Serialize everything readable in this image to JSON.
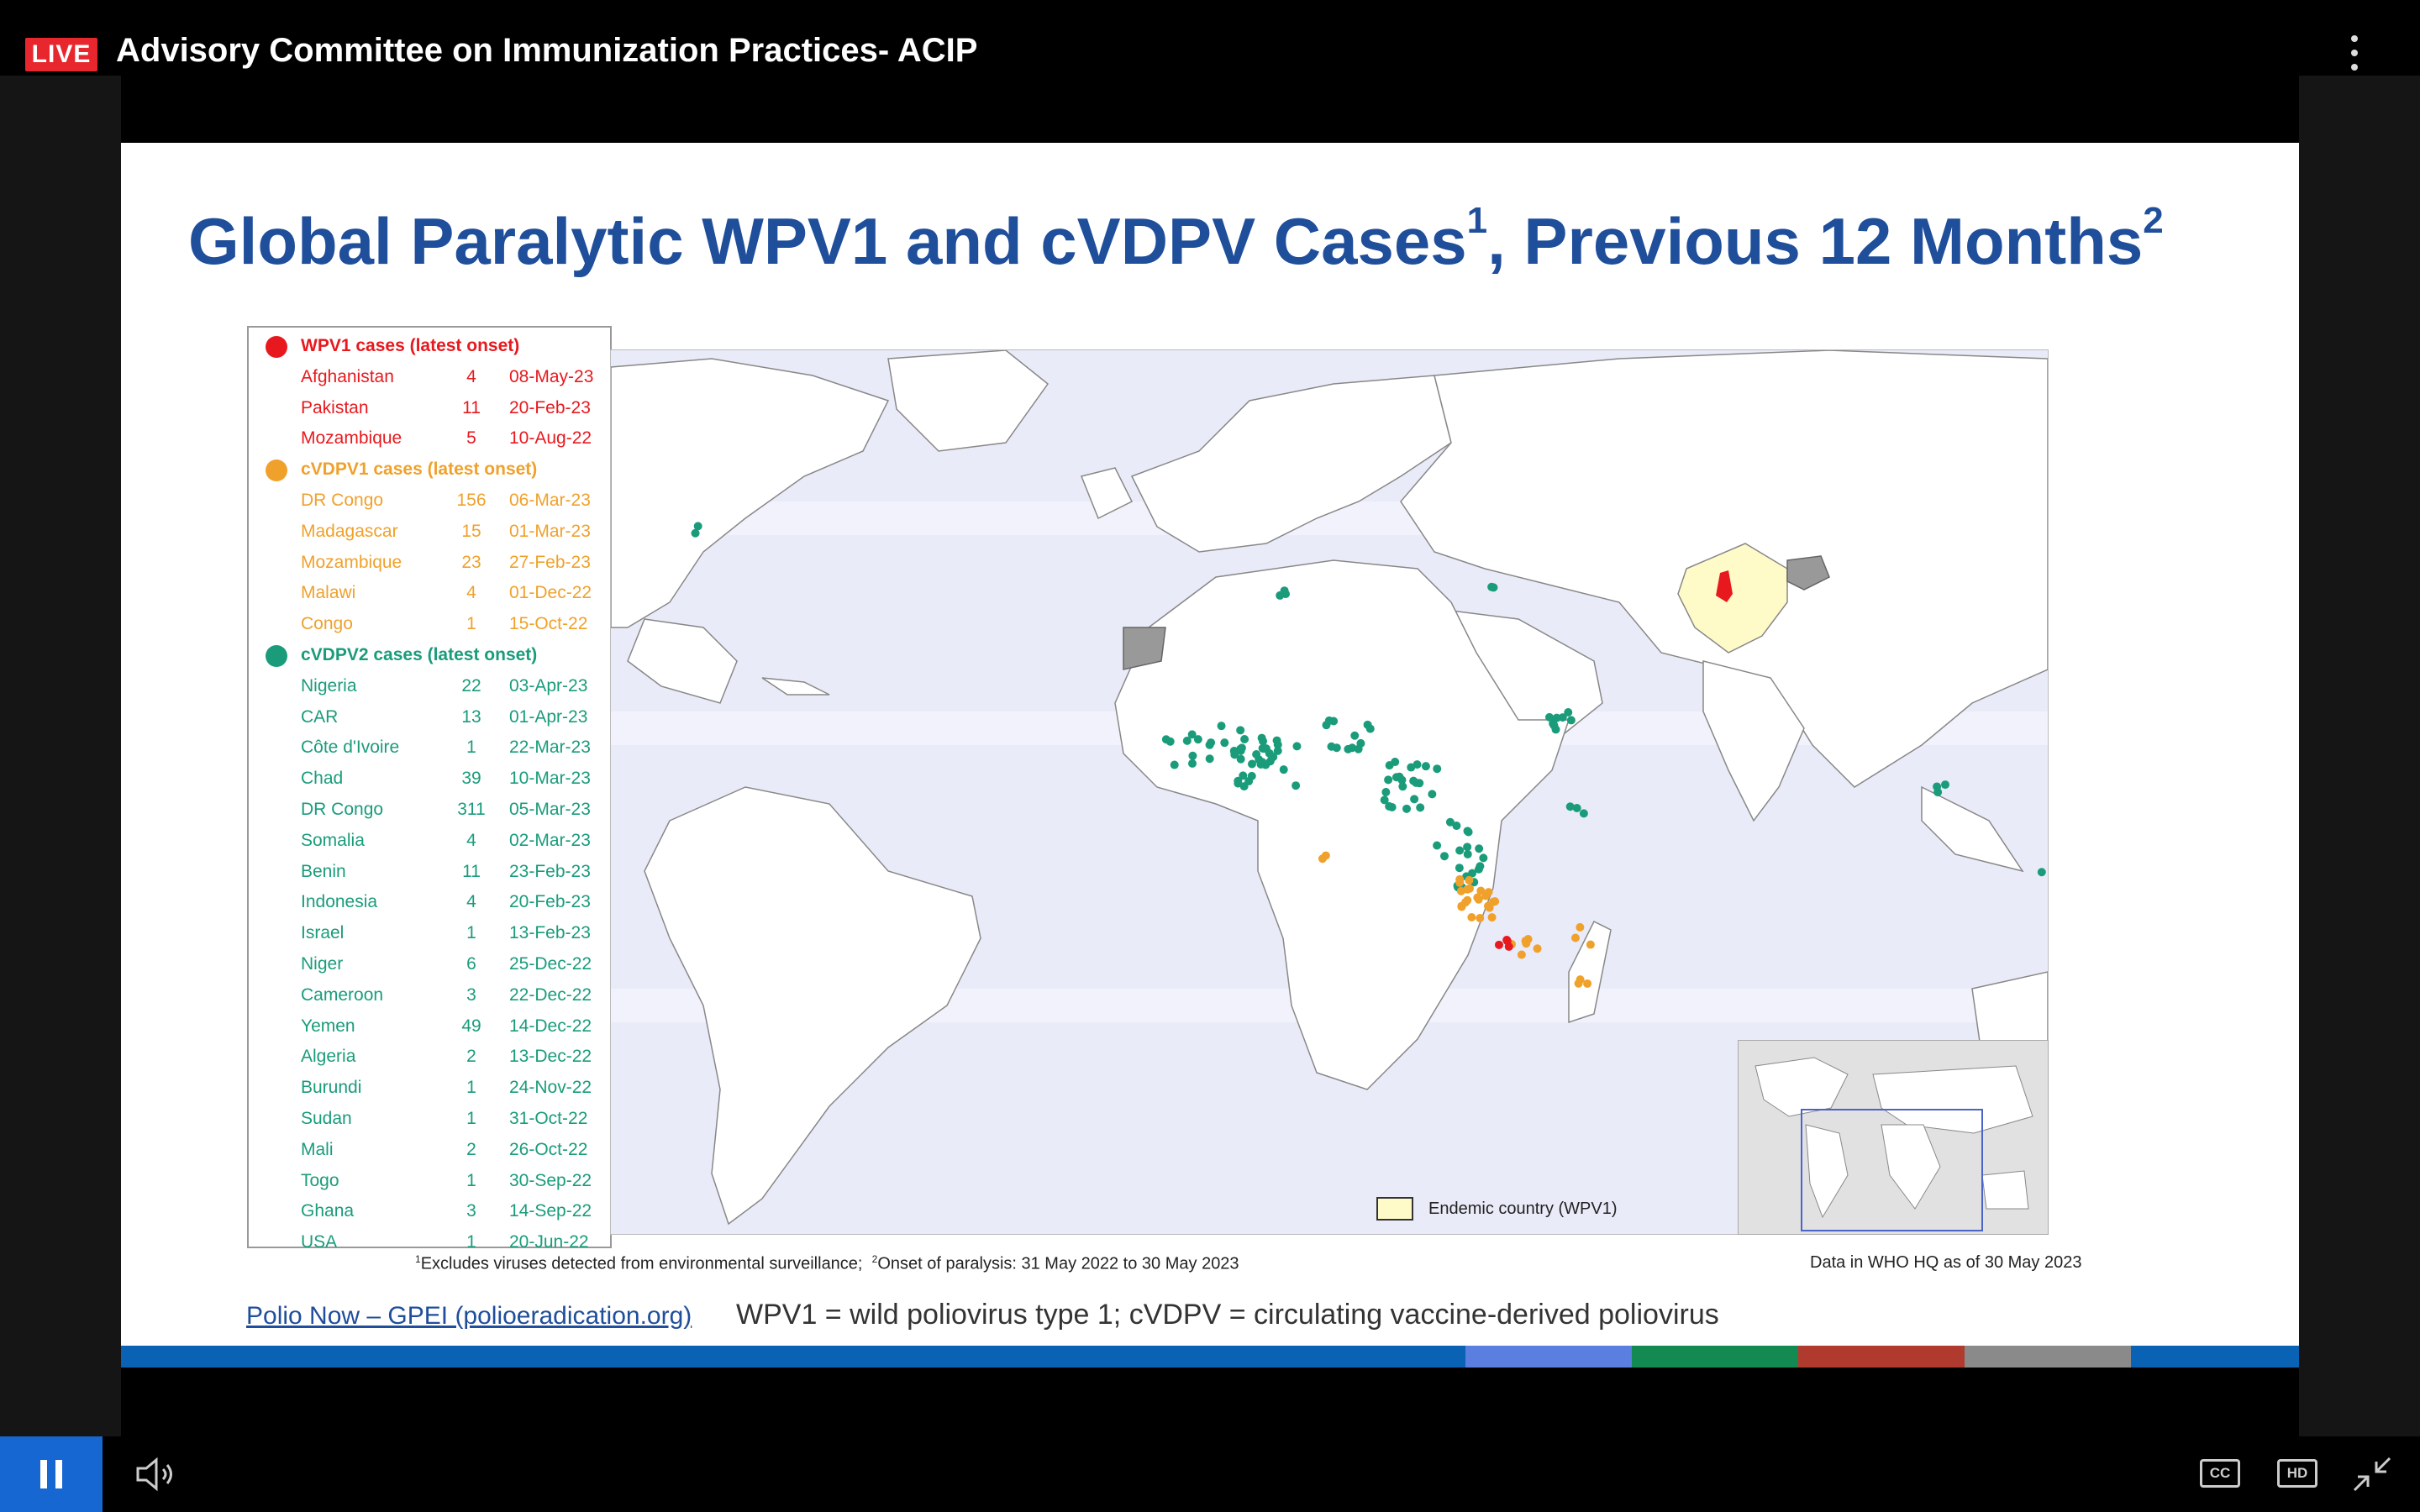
{
  "player": {
    "live_badge": "LIVE",
    "title": "Advisory Committee on Immunization Practices- ACIP"
  },
  "slide": {
    "title_main": "Global Paralytic WPV1 and cVDPV Cases",
    "title_sup1": "1",
    "title_sep": ", Previous 12 Months",
    "title_sup2": "2",
    "legend": {
      "wpv1": {
        "heading": "WPV1 cases (latest onset)",
        "color": "#e8191e",
        "rows": [
          {
            "country": "Afghanistan",
            "count": "4",
            "date": "08-May-23"
          },
          {
            "country": "Pakistan",
            "count": "11",
            "date": "20-Feb-23"
          },
          {
            "country": "Mozambique",
            "count": "5",
            "date": "10-Aug-22"
          }
        ]
      },
      "cvdpv1": {
        "heading": "cVDPV1 cases (latest onset)",
        "color": "#f0a12c",
        "rows": [
          {
            "country": "DR Congo",
            "count": "156",
            "date": "06-Mar-23"
          },
          {
            "country": "Madagascar",
            "count": "15",
            "date": "01-Mar-23"
          },
          {
            "country": "Mozambique",
            "count": "23",
            "date": "27-Feb-23"
          },
          {
            "country": "Malawi",
            "count": "4",
            "date": "01-Dec-22"
          },
          {
            "country": "Congo",
            "count": "1",
            "date": "15-Oct-22"
          }
        ]
      },
      "cvdpv2": {
        "heading": "cVDPV2 cases (latest onset)",
        "color": "#1a9c7b",
        "rows": [
          {
            "country": "Nigeria",
            "count": "22",
            "date": "03-Apr-23"
          },
          {
            "country": "CAR",
            "count": "13",
            "date": "01-Apr-23"
          },
          {
            "country": "Côte d'Ivoire",
            "count": "1",
            "date": "22-Mar-23"
          },
          {
            "country": "Chad",
            "count": "39",
            "date": "10-Mar-23"
          },
          {
            "country": "DR Congo",
            "count": "311",
            "date": "05-Mar-23"
          },
          {
            "country": "Somalia",
            "count": "4",
            "date": "02-Mar-23"
          },
          {
            "country": "Benin",
            "count": "11",
            "date": "23-Feb-23"
          },
          {
            "country": "Indonesia",
            "count": "4",
            "date": "20-Feb-23"
          },
          {
            "country": "Israel",
            "count": "1",
            "date": "13-Feb-23"
          },
          {
            "country": "Niger",
            "count": "6",
            "date": "25-Dec-22"
          },
          {
            "country": "Cameroon",
            "count": "3",
            "date": "22-Dec-22"
          },
          {
            "country": "Yemen",
            "count": "49",
            "date": "14-Dec-22"
          },
          {
            "country": "Algeria",
            "count": "2",
            "date": "13-Dec-22"
          },
          {
            "country": "Burundi",
            "count": "1",
            "date": "24-Nov-22"
          },
          {
            "country": "Sudan",
            "count": "1",
            "date": "31-Oct-22"
          },
          {
            "country": "Mali",
            "count": "2",
            "date": "26-Oct-22"
          },
          {
            "country": "Togo",
            "count": "1",
            "date": "30-Sep-22"
          },
          {
            "country": "Ghana",
            "count": "3",
            "date": "14-Sep-22"
          },
          {
            "country": "USA",
            "count": "1",
            "date": "20-Jun-22"
          }
        ]
      }
    },
    "endemic_label": "Endemic country (WPV1)",
    "footnote_sup1": "1",
    "footnote_1": "Excludes viruses detected from environmental surveillance;",
    "footnote_sup2": "2",
    "footnote_2": "Onset of paralysis: 31 May 2022 to 30 May 2023",
    "data_source": "Data in WHO HQ as of 30 May 2023",
    "link": "Polio Now – GPEI (polioeradication.org)",
    "definitions": "WPV1 = wild poliovirus type 1; cVDPV = circulating vaccine-derived poliovirus",
    "colors": {
      "title": "#1f4e9b",
      "endemic": "#fffbc8",
      "ocean": "#e9ebf8",
      "stripe": [
        "#0a62b5",
        "#5b7fe0",
        "#138a52",
        "#b03a2e",
        "#8a8a8a",
        "#0a62b5"
      ]
    }
  },
  "controls": {
    "pause_icon": "pause-icon",
    "volume_icon": "volume-icon",
    "cc_label": "CC",
    "hd_label": "HD",
    "exit_fullscreen_icon": "exit-fullscreen-icon"
  }
}
